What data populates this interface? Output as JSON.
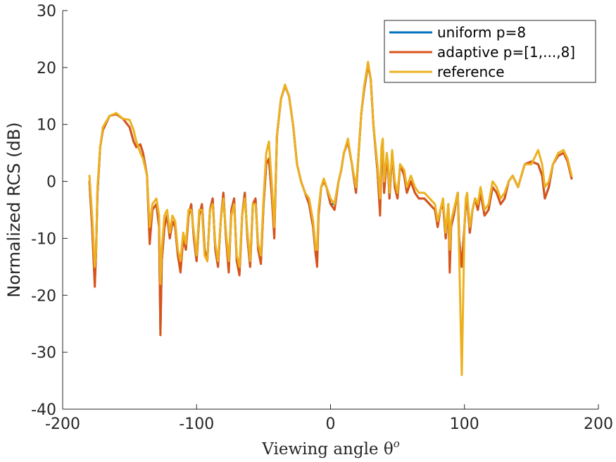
{
  "chart_data": {
    "type": "line",
    "title": "",
    "xlabel": "Viewing angle θ",
    "xlabel_sup": "o",
    "ylabel": "Normalized RCS (dB)",
    "xlim": [
      -200,
      200
    ],
    "ylim": [
      -40,
      30
    ],
    "xticks": [
      -200,
      -100,
      0,
      100,
      200
    ],
    "yticks": [
      -40,
      -30,
      -20,
      -10,
      0,
      10,
      20,
      30
    ],
    "grid": false,
    "legend_position": "top-right",
    "series": [
      {
        "name": "uniform p=8",
        "color": "#0072BD",
        "x": [
          -180,
          -178,
          -176,
          -175,
          -174,
          -172,
          -170,
          -165,
          -160,
          -155,
          -150,
          -147,
          -145,
          -142,
          -140,
          -137,
          -135,
          -133,
          -130,
          -128,
          -127,
          -126,
          -124,
          -122,
          -120,
          -118,
          -116,
          -114,
          -112,
          -110,
          -108,
          -106,
          -104,
          -102,
          -100,
          -98,
          -96,
          -94,
          -92,
          -90,
          -88,
          -86,
          -84,
          -82,
          -80,
          -78,
          -76,
          -74,
          -72,
          -70,
          -68,
          -66,
          -64,
          -62,
          -60,
          -58,
          -56,
          -54,
          -52,
          -50,
          -48,
          -46,
          -44,
          -42,
          -40,
          -37,
          -34,
          -31,
          -28,
          -25,
          -22,
          -19,
          -16,
          -13,
          -11,
          -10,
          -9,
          -7,
          -5,
          -3,
          0,
          3,
          6,
          8,
          10,
          13,
          16,
          19,
          21,
          23,
          25,
          28,
          30,
          32,
          35,
          37,
          38,
          39,
          40,
          42,
          43,
          44,
          46,
          48,
          50,
          52,
          55,
          57,
          60,
          63,
          66,
          70,
          74,
          78,
          80,
          82,
          84,
          86,
          88,
          89,
          90,
          92,
          94,
          95,
          96,
          98,
          100,
          101,
          102,
          104,
          106,
          108,
          110,
          112,
          115,
          118,
          121,
          124,
          127,
          130,
          133,
          136,
          140,
          145,
          150,
          155,
          158,
          160,
          163,
          166,
          170,
          174,
          177,
          180
        ],
        "y": [
          0,
          -8,
          -18,
          -12,
          -2,
          6,
          9,
          11.5,
          11.8,
          11,
          9.5,
          7,
          6,
          6.5,
          5,
          1,
          -10,
          -5,
          -4,
          -8,
          -26,
          -14,
          -8,
          -6,
          -10,
          -7,
          -8,
          -13,
          -15,
          -10,
          -12,
          -6,
          -4,
          -10,
          -14,
          -6,
          -4,
          -12,
          -14,
          -5,
          -3,
          -12,
          -15,
          -7,
          -2,
          -10,
          -15,
          -5,
          -3,
          -14,
          -16,
          -6,
          -2,
          -10,
          -15,
          -4,
          -3,
          -12,
          -14,
          -4,
          3,
          4,
          -2,
          -9,
          8,
          14.5,
          16.8,
          15,
          10,
          3,
          0,
          -2,
          -4,
          -8,
          -13,
          -14,
          -6,
          -1,
          0,
          -1,
          -4,
          -4,
          0,
          2,
          5,
          7,
          3,
          -2,
          5,
          12,
          16,
          20.5,
          18,
          10,
          2,
          -5,
          4,
          7,
          -2,
          4,
          2,
          -3,
          5,
          -1,
          -3,
          3,
          1,
          -2,
          0,
          -2,
          -3,
          -3,
          -4,
          -5,
          -8,
          -5,
          -4,
          -10,
          -4,
          -15,
          -8,
          -6,
          -3,
          -2,
          -10,
          -15,
          -8,
          -4,
          -3,
          -9,
          -5,
          -3,
          -5,
          -2,
          -6,
          -5,
          -1,
          -2,
          -4,
          -3,
          0,
          1,
          -1,
          3,
          3.5,
          3,
          1,
          -3,
          -1,
          3,
          4.5,
          5,
          3.5,
          0.5
        ]
      },
      {
        "name": "adaptive p=[1,...,8]",
        "color": "#D95319",
        "x": [
          -180,
          -178,
          -176,
          -175,
          -174,
          -172,
          -170,
          -165,
          -160,
          -155,
          -150,
          -147,
          -145,
          -142,
          -140,
          -137,
          -135,
          -133,
          -130,
          -128,
          -127,
          -126,
          -124,
          -122,
          -120,
          -118,
          -116,
          -114,
          -112,
          -110,
          -108,
          -106,
          -104,
          -102,
          -100,
          -98,
          -96,
          -94,
          -92,
          -90,
          -88,
          -86,
          -84,
          -82,
          -80,
          -78,
          -76,
          -74,
          -72,
          -70,
          -68,
          -66,
          -64,
          -62,
          -60,
          -58,
          -56,
          -54,
          -52,
          -50,
          -48,
          -46,
          -44,
          -42,
          -40,
          -37,
          -34,
          -31,
          -28,
          -25,
          -22,
          -19,
          -16,
          -13,
          -11,
          -10,
          -9,
          -7,
          -5,
          -3,
          0,
          3,
          6,
          8,
          10,
          13,
          16,
          19,
          21,
          23,
          25,
          28,
          30,
          32,
          35,
          37,
          38,
          39,
          40,
          42,
          43,
          44,
          46,
          48,
          50,
          52,
          55,
          57,
          60,
          63,
          66,
          70,
          74,
          78,
          80,
          82,
          84,
          86,
          88,
          89,
          90,
          92,
          94,
          95,
          96,
          98,
          100,
          101,
          102,
          104,
          106,
          108,
          110,
          112,
          115,
          118,
          121,
          124,
          127,
          130,
          133,
          136,
          140,
          145,
          150,
          155,
          158,
          160,
          163,
          166,
          170,
          174,
          177,
          180
        ],
        "y": [
          0,
          -8,
          -18.5,
          -12,
          -2,
          6,
          9,
          11.5,
          11.8,
          11,
          9.5,
          7,
          6,
          6.5,
          5,
          1,
          -11,
          -5,
          -4,
          -8,
          -27,
          -14,
          -8,
          -6,
          -10,
          -7,
          -8,
          -13,
          -16,
          -10,
          -12,
          -6,
          -4,
          -10,
          -14,
          -6,
          -4,
          -12,
          -14,
          -5,
          -3,
          -12,
          -15,
          -7,
          -2,
          -10,
          -16,
          -5,
          -3,
          -14,
          -16.5,
          -6,
          -2,
          -10,
          -15,
          -4,
          -3,
          -12,
          -14.5,
          -4,
          3,
          4,
          -2,
          -10,
          8,
          14.5,
          16.8,
          15,
          10,
          3,
          0,
          -2,
          -4,
          -8,
          -13,
          -15,
          -6,
          -1,
          0,
          -1,
          -4,
          -5,
          0,
          2,
          5,
          7,
          3,
          -2,
          5,
          12,
          16,
          20.5,
          18,
          10,
          2,
          -6,
          4,
          7,
          -2,
          4,
          2,
          -3,
          5,
          -1,
          -3,
          3,
          1,
          -2,
          0,
          -2,
          -3,
          -3,
          -4,
          -5,
          -8,
          -5,
          -4,
          -10,
          -4,
          -16,
          -8,
          -6,
          -3,
          -2,
          -10,
          -15,
          -8,
          -4,
          -3,
          -9,
          -5,
          -3,
          -5,
          -2,
          -6,
          -5,
          -1,
          -2,
          -4,
          -3,
          0,
          1,
          -1,
          3,
          3.5,
          3,
          1,
          -3,
          -1,
          3,
          4.5,
          5,
          3.5,
          0.5
        ]
      },
      {
        "name": "reference",
        "color": "#EDB120",
        "x": [
          -180,
          -178,
          -176,
          -175,
          -174,
          -172,
          -170,
          -165,
          -160,
          -155,
          -150,
          -147,
          -145,
          -142,
          -140,
          -137,
          -135,
          -133,
          -130,
          -128,
          -127,
          -126,
          -124,
          -122,
          -120,
          -118,
          -116,
          -114,
          -112,
          -110,
          -108,
          -106,
          -104,
          -102,
          -100,
          -98,
          -96,
          -94,
          -92,
          -90,
          -88,
          -86,
          -84,
          -82,
          -80,
          -78,
          -76,
          -74,
          -72,
          -70,
          -68,
          -66,
          -64,
          -62,
          -60,
          -58,
          -56,
          -54,
          -52,
          -50,
          -48,
          -46,
          -44,
          -42,
          -40,
          -37,
          -34,
          -31,
          -28,
          -25,
          -22,
          -19,
          -16,
          -13,
          -11,
          -10,
          -9,
          -7,
          -5,
          -3,
          0,
          3,
          6,
          8,
          10,
          13,
          16,
          19,
          21,
          23,
          25,
          28,
          30,
          32,
          35,
          37,
          38,
          39,
          40,
          42,
          43,
          44,
          46,
          48,
          50,
          52,
          55,
          57,
          60,
          63,
          66,
          70,
          74,
          78,
          80,
          82,
          84,
          86,
          88,
          89,
          90,
          92,
          94,
          95,
          96,
          98,
          100,
          101,
          102,
          104,
          106,
          108,
          110,
          112,
          115,
          118,
          121,
          124,
          127,
          130,
          133,
          136,
          140,
          145,
          150,
          155,
          158,
          160,
          163,
          166,
          170,
          174,
          177,
          180
        ],
        "y": [
          1,
          -6,
          -15,
          -12,
          -1,
          6,
          9.5,
          11.5,
          12,
          11,
          10.8,
          9,
          7,
          5,
          4,
          1,
          -8,
          -4,
          -3,
          -6,
          -18,
          -12,
          -6,
          -5,
          -9,
          -6,
          -7,
          -12,
          -14,
          -9,
          -11,
          -5,
          -5,
          -9,
          -13,
          -5,
          -5,
          -13,
          -14,
          -5,
          -4,
          -11,
          -14,
          -7,
          -3,
          -9,
          -14,
          -6,
          -4,
          -13,
          -15,
          -6,
          -3,
          -9,
          -14,
          -4,
          -4,
          -11,
          -13,
          -3,
          5,
          7,
          0,
          -8,
          8,
          14.5,
          17,
          15,
          10,
          3,
          0,
          -2,
          -3,
          -7,
          -12,
          -12,
          -5,
          -1,
          0.5,
          -1,
          -3,
          -4,
          0,
          2,
          5,
          7.5,
          3,
          -1,
          5,
          12,
          16.5,
          21,
          18,
          10,
          3,
          -3,
          6,
          7.5,
          0,
          5,
          3,
          -2,
          5.5,
          0,
          -2,
          3,
          2,
          -1,
          1,
          -1,
          -2,
          -2,
          -3,
          -4,
          -7,
          -5,
          -3,
          -9,
          -4,
          -12,
          -7,
          -5,
          -3,
          -2,
          -12,
          -34,
          -8,
          -3,
          -2,
          -8,
          -5,
          -3,
          -4,
          -1,
          -5,
          -4,
          0,
          -1,
          -3,
          -2,
          0,
          1,
          -1,
          3,
          3,
          5.5,
          3,
          -1,
          0,
          3,
          5,
          5.5,
          4,
          1
        ]
      }
    ]
  }
}
